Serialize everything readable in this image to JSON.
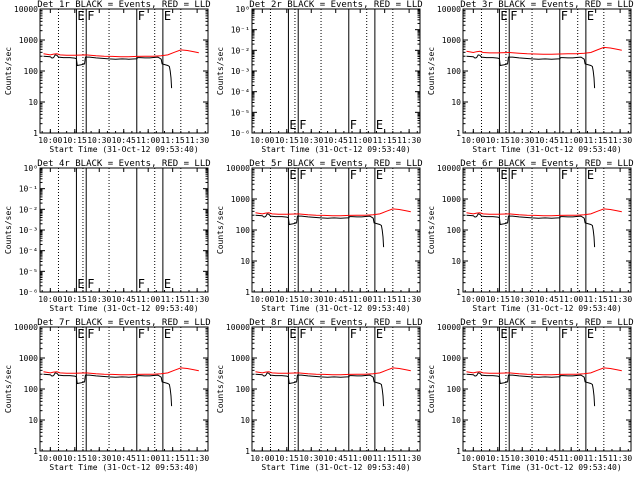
{
  "chart_data": [
    {
      "type": "line",
      "title": "Det 1r BLACK = Events, RED = LLD",
      "xlabel": "Start Time (31-Oct-12 09:53:40)",
      "ylabel": "Counts/sec",
      "xticks": [
        "10:00",
        "10:15",
        "10:30",
        "10:45",
        "11:00",
        "11:15",
        "11:30"
      ],
      "yscale": "log",
      "ylim": [
        1,
        10000
      ],
      "yticklabels": [
        "1",
        "10",
        "100",
        "1000",
        "10000"
      ],
      "series": [
        {
          "name": "Events",
          "color": "#000000"
        },
        {
          "name": "LLD",
          "color": "#ff0000"
        }
      ],
      "markers": [
        "E",
        "F",
        "F",
        "E"
      ],
      "has_data": true,
      "lld_offset": 0
    },
    {
      "type": "line",
      "title": "Det 2r BLACK = Events, RED = LLD",
      "xlabel": "Start Time (31-Oct-12 09:53:40)",
      "ylabel": "Counts/sec",
      "xticks": [
        "10:00",
        "10:15",
        "10:30",
        "10:45",
        "11:00",
        "11:15",
        "11:30"
      ],
      "yscale": "log",
      "ylim": [
        1e-06,
        1
      ],
      "yticklabels": [
        "10⁰",
        "10⁻¹",
        "10⁻²",
        "10⁻³",
        "10⁻⁴",
        "10⁻⁵",
        "10⁻⁶"
      ],
      "series": [],
      "markers": [
        "E",
        "F",
        "F",
        "E"
      ],
      "has_data": false
    },
    {
      "type": "line",
      "title": "Det 3r BLACK = Events, RED = LLD",
      "xlabel": "Start Time (31-Oct-12 09:53:40)",
      "ylabel": "Counts/sec",
      "xticks": [
        "10:00",
        "10:15",
        "10:30",
        "10:45",
        "11:00",
        "11:15",
        "11:30"
      ],
      "yscale": "log",
      "ylim": [
        1,
        10000
      ],
      "yticklabels": [
        "1",
        "10",
        "100",
        "1000",
        "10000"
      ],
      "series": [
        {
          "name": "Events",
          "color": "#000000"
        },
        {
          "name": "LLD",
          "color": "#ff0000"
        }
      ],
      "markers": [
        "E",
        "F",
        "F",
        "E"
      ],
      "has_data": true,
      "lld_offset": 20
    },
    {
      "type": "line",
      "title": "Det 4r BLACK = Events, RED = LLD",
      "xlabel": "Start Time (31-Oct-12 09:53:40)",
      "ylabel": "Counts/sec",
      "xticks": [
        "10:00",
        "10:15",
        "10:30",
        "10:45",
        "11:00",
        "11:15",
        "11:30"
      ],
      "yscale": "log",
      "ylim": [
        1e-06,
        1
      ],
      "yticklabels": [
        "10⁰",
        "10⁻¹",
        "10⁻²",
        "10⁻³",
        "10⁻⁴",
        "10⁻⁵",
        "10⁻⁶"
      ],
      "series": [],
      "markers": [
        "E",
        "F",
        "F",
        "E"
      ],
      "has_data": false
    },
    {
      "type": "line",
      "title": "Det 5r BLACK = Events, RED = LLD",
      "xlabel": "Start Time (31-Oct-12 09:53:40)",
      "ylabel": "Counts/sec",
      "xticks": [
        "10:00",
        "10:15",
        "10:30",
        "10:45",
        "11:00",
        "11:15",
        "11:30"
      ],
      "yscale": "log",
      "ylim": [
        1,
        10000
      ],
      "yticklabels": [
        "1",
        "10",
        "100",
        "1000",
        "10000"
      ],
      "series": [
        {
          "name": "Events",
          "color": "#000000"
        },
        {
          "name": "LLD",
          "color": "#ff0000"
        }
      ],
      "markers": [
        "E",
        "F",
        "F",
        "E"
      ],
      "has_data": true,
      "lld_offset": 0
    },
    {
      "type": "line",
      "title": "Det 6r BLACK = Events, RED = LLD",
      "xlabel": "Start Time (31-Oct-12 09:53:40)",
      "ylabel": "Counts/sec",
      "xticks": [
        "10:00",
        "10:15",
        "10:30",
        "10:45",
        "11:00",
        "11:15",
        "11:30"
      ],
      "yscale": "log",
      "ylim": [
        1,
        10000
      ],
      "yticklabels": [
        "1",
        "10",
        "100",
        "1000",
        "10000"
      ],
      "series": [
        {
          "name": "Events",
          "color": "#000000"
        },
        {
          "name": "LLD",
          "color": "#ff0000"
        }
      ],
      "markers": [
        "E",
        "F",
        "F",
        "E"
      ],
      "has_data": true,
      "lld_offset": 0
    },
    {
      "type": "line",
      "title": "Det 7r BLACK = Events, RED = LLD",
      "xlabel": "Start Time (31-Oct-12 09:53:40)",
      "ylabel": "Counts/sec",
      "xticks": [
        "10:00",
        "10:15",
        "10:30",
        "10:45",
        "11:00",
        "11:15",
        "11:30"
      ],
      "yscale": "log",
      "ylim": [
        1,
        10000
      ],
      "yticklabels": [
        "1",
        "10",
        "100",
        "1000",
        "10000"
      ],
      "series": [
        {
          "name": "Events",
          "color": "#000000"
        },
        {
          "name": "LLD",
          "color": "#ff0000"
        }
      ],
      "markers": [
        "E",
        "F",
        "F",
        "E"
      ],
      "has_data": true,
      "lld_offset": 0
    },
    {
      "type": "line",
      "title": "Det 8r BLACK = Events, RED = LLD",
      "xlabel": "Start Time (31-Oct-12 09:53:40)",
      "ylabel": "Counts/sec",
      "xticks": [
        "10:00",
        "10:15",
        "10:30",
        "10:45",
        "11:00",
        "11:15",
        "11:30"
      ],
      "yscale": "log",
      "ylim": [
        1,
        10000
      ],
      "yticklabels": [
        "1",
        "10",
        "100",
        "1000",
        "10000"
      ],
      "series": [
        {
          "name": "Events",
          "color": "#000000"
        },
        {
          "name": "LLD",
          "color": "#ff0000"
        }
      ],
      "markers": [
        "E",
        "F",
        "F",
        "E"
      ],
      "has_data": true,
      "lld_offset": 0
    },
    {
      "type": "line",
      "title": "Det 9r BLACK = Events, RED = LLD",
      "xlabel": "Start Time (31-Oct-12 09:53:40)",
      "ylabel": "Counts/sec",
      "xticks": [
        "10:00",
        "10:15",
        "10:30",
        "10:45",
        "11:00",
        "11:15",
        "11:30"
      ],
      "yscale": "log",
      "ylim": [
        1,
        10000
      ],
      "yticklabels": [
        "1",
        "10",
        "100",
        "1000",
        "10000"
      ],
      "series": [
        {
          "name": "Events",
          "color": "#000000"
        },
        {
          "name": "LLD",
          "color": "#ff0000"
        }
      ],
      "markers": [
        "E",
        "F",
        "F",
        "E"
      ],
      "has_data": true,
      "lld_offset": 0
    }
  ],
  "time_axis": {
    "range": [
      "09:53:40",
      "11:36:40"
    ]
  },
  "dotted_times": [
    "10:05",
    "10:20",
    "10:36",
    "11:04",
    "11:20"
  ],
  "solid_lines": [
    {
      "time": "10:16",
      "marker": "E"
    },
    {
      "time": "10:22",
      "marker": "F"
    },
    {
      "time": "10:53",
      "marker": "F"
    },
    {
      "time": "11:09",
      "marker": "E"
    }
  ],
  "events_curve": [
    [
      "09:55:50",
      300
    ],
    [
      "10:00",
      290
    ],
    [
      "10:01",
      260
    ],
    [
      "10:02",
      270
    ],
    [
      "10:03",
      330
    ],
    [
      "10:04",
      320
    ],
    [
      "10:05",
      280
    ],
    [
      "10:08",
      270
    ],
    [
      "10:12",
      270
    ],
    [
      "10:15",
      260
    ],
    [
      "10:16",
      250
    ],
    [
      "10:16:30",
      150
    ],
    [
      "10:19",
      160
    ],
    [
      "10:21",
      170
    ],
    [
      "10:21:30",
      280
    ],
    [
      "10:24",
      280
    ],
    [
      "10:28",
      265
    ],
    [
      "10:32",
      255
    ],
    [
      "10:36",
      245
    ],
    [
      "10:40",
      240
    ],
    [
      "10:44",
      245
    ],
    [
      "10:48",
      240
    ],
    [
      "10:52",
      245
    ],
    [
      "10:53",
      245
    ],
    [
      "10:53:30",
      270
    ],
    [
      "10:55",
      270
    ],
    [
      "10:58",
      265
    ],
    [
      "11:01",
      265
    ],
    [
      "11:04",
      275
    ],
    [
      "11:06",
      280
    ],
    [
      "11:08",
      240
    ],
    [
      "11:08:30",
      170
    ],
    [
      "11:12",
      150
    ],
    [
      "11:13",
      140
    ],
    [
      "11:13:30",
      100
    ],
    [
      "11:14",
      60
    ],
    [
      "11:14:20",
      28
    ]
  ],
  "lld_curve": [
    [
      "09:55:50",
      360
    ],
    [
      "10:00",
      330
    ],
    [
      "10:02",
      350
    ],
    [
      "10:04",
      360
    ],
    [
      "10:06",
      330
    ],
    [
      "10:10",
      320
    ],
    [
      "10:15",
      320
    ],
    [
      "10:22",
      330
    ],
    [
      "10:28",
      310
    ],
    [
      "10:33",
      300
    ],
    [
      "10:38",
      295
    ],
    [
      "10:43",
      290
    ],
    [
      "10:48",
      290
    ],
    [
      "10:53",
      295
    ],
    [
      "10:58",
      300
    ],
    [
      "11:03",
      300
    ],
    [
      "11:08",
      310
    ],
    [
      "11:12",
      330
    ],
    [
      "11:16",
      400
    ],
    [
      "11:20",
      480
    ],
    [
      "11:24",
      460
    ],
    [
      "11:28",
      420
    ],
    [
      "11:31",
      390
    ]
  ]
}
